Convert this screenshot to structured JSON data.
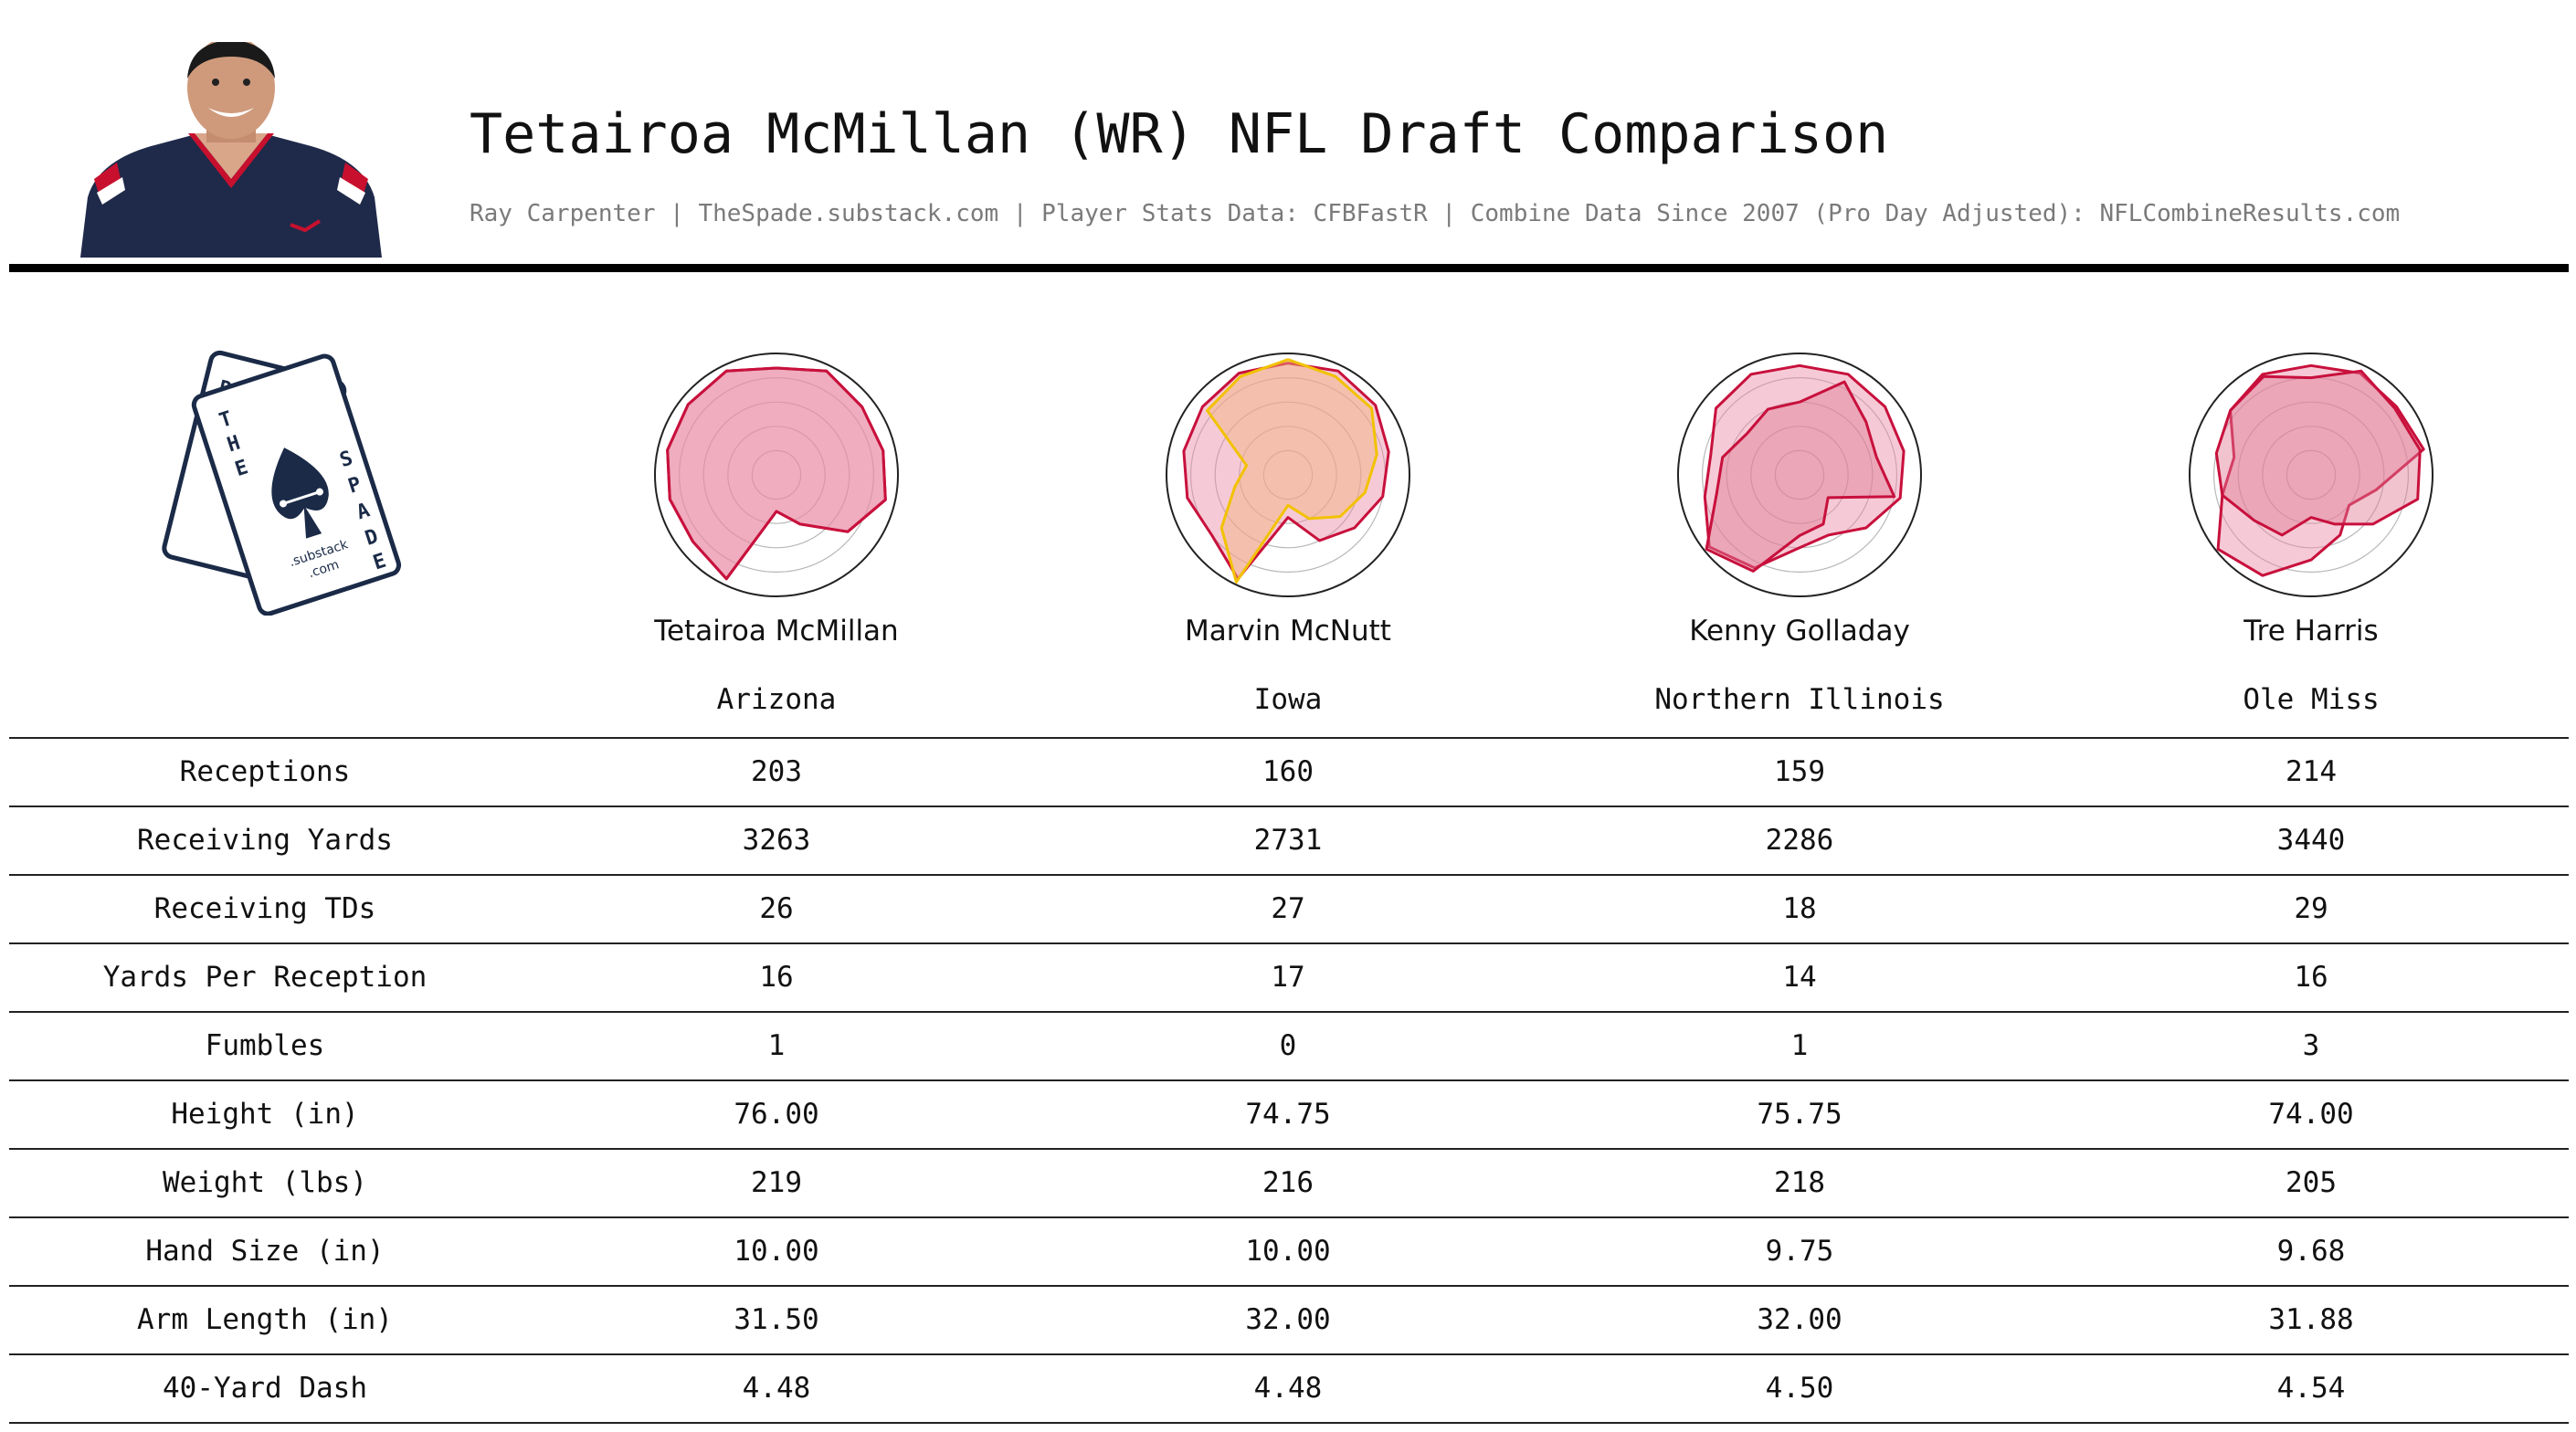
{
  "header": {
    "title": "Tetairoa McMillan (WR) NFL Draft Comparison",
    "subtitle": "Ray Carpenter | TheSpade.substack.com | Player Stats Data: CFBFastR | Combine Data Since 2007 (Pro Day Adjusted): NFLCombineResults.com"
  },
  "logo": {
    "letters": [
      "R",
      "C",
      "T",
      "H",
      "E",
      "S",
      "P",
      "A",
      "D",
      "E"
    ],
    "footer": ".substack",
    "footer2": ".com"
  },
  "colors": {
    "crimson": "#c8103c",
    "pink_fill": "#e88aa3",
    "gold": "#f2c200",
    "orange_fill": "#f5b47c",
    "grid": "#b8b8b8"
  },
  "players": [
    {
      "name": "Tetairoa McMillan",
      "school": "Arizona"
    },
    {
      "name": "Marvin McNutt",
      "school": "Iowa"
    },
    {
      "name": "Kenny Golladay",
      "school": "Northern Illinois"
    },
    {
      "name": "Tre Harris",
      "school": "Ole Miss"
    }
  ],
  "table": {
    "rows": [
      {
        "label": "Receptions",
        "values": [
          "203",
          "160",
          "159",
          "214"
        ]
      },
      {
        "label": "Receiving Yards",
        "values": [
          "3263",
          "2731",
          "2286",
          "3440"
        ]
      },
      {
        "label": "Receiving TDs",
        "values": [
          "26",
          "27",
          "18",
          "29"
        ]
      },
      {
        "label": "Yards Per Reception",
        "values": [
          "16",
          "17",
          "14",
          "16"
        ]
      },
      {
        "label": "Fumbles",
        "values": [
          "1",
          "0",
          "1",
          "3"
        ]
      },
      {
        "label": "Height (in)",
        "values": [
          "76.00",
          "74.75",
          "75.75",
          "74.00"
        ]
      },
      {
        "label": "Weight (lbs)",
        "values": [
          "219",
          "216",
          "218",
          "205"
        ]
      },
      {
        "label": "Hand Size (in)",
        "values": [
          "10.00",
          "10.00",
          "9.75",
          "9.68"
        ]
      },
      {
        "label": "Arm Length (in)",
        "values": [
          "31.50",
          "32.00",
          "32.00",
          "31.88"
        ]
      },
      {
        "label": "40-Yard Dash",
        "values": [
          "4.48",
          "4.48",
          "4.50",
          "4.54"
        ]
      }
    ]
  },
  "chart_data": [
    {
      "type": "radar",
      "player": "Tetairoa McMillan",
      "series": [
        {
          "color": "#c8103c",
          "fill": "#e88aa3",
          "values": [
            0.88,
            0.95,
            0.9,
            0.9,
            0.92,
            0.75,
            0.45,
            0.3,
            0.95,
            0.88,
            0.9,
            0.92,
            0.93,
            0.95
          ]
        },
        {
          "color": "#c8103c",
          "fill": "#e88aa3",
          "values": [
            0.88,
            0.95,
            0.9,
            0.9,
            0.92,
            0.75,
            0.45,
            0.3,
            0.95,
            0.88,
            0.9,
            0.92,
            0.93,
            0.95
          ]
        }
      ]
    },
    {
      "type": "radar",
      "player": "Marvin McNutt",
      "series": [
        {
          "color": "#c8103c",
          "fill": "#e88aa3",
          "values": [
            0.92,
            0.95,
            0.92,
            0.85,
            0.8,
            0.7,
            0.6,
            0.35,
            0.95,
            0.8,
            0.85,
            0.88,
            0.9,
            0.93
          ]
        },
        {
          "color": "#f2c200",
          "fill": "#f5b47c",
          "values": [
            0.95,
            0.9,
            0.88,
            0.75,
            0.65,
            0.55,
            0.4,
            0.25,
            0.98,
            0.7,
            0.45,
            0.35,
            0.85,
            0.9
          ]
        }
      ]
    },
    {
      "type": "radar",
      "player": "Kenny Golladay",
      "series": [
        {
          "color": "#c8103c",
          "fill": "#e88aa3",
          "values": [
            0.9,
            0.92,
            0.9,
            0.88,
            0.85,
            0.7,
            0.55,
            0.6,
            0.85,
            0.95,
            0.8,
            0.75,
            0.88,
            0.92
          ]
        },
        {
          "color": "#c8103c",
          "fill": "#e07a94",
          "values": [
            0.6,
            0.85,
            0.7,
            0.65,
            0.8,
            0.3,
            0.45,
            0.5,
            0.88,
            0.98,
            0.7,
            0.65,
            0.55,
            0.6
          ]
        }
      ]
    },
    {
      "type": "radar",
      "player": "Tre Harris",
      "series": [
        {
          "color": "#c8103c",
          "fill": "#e88aa3",
          "values": [
            0.9,
            0.93,
            0.9,
            0.95,
            0.55,
            0.4,
            0.55,
            0.7,
            0.92,
            0.98,
            0.75,
            0.65,
            0.85,
            0.92
          ]
        },
        {
          "color": "#c8103c",
          "fill": "#e07a94",
          "values": [
            0.8,
            0.95,
            0.88,
            0.92,
            0.9,
            0.65,
            0.45,
            0.35,
            0.55,
            0.6,
            0.75,
            0.8,
            0.85,
            0.9
          ]
        }
      ]
    }
  ]
}
